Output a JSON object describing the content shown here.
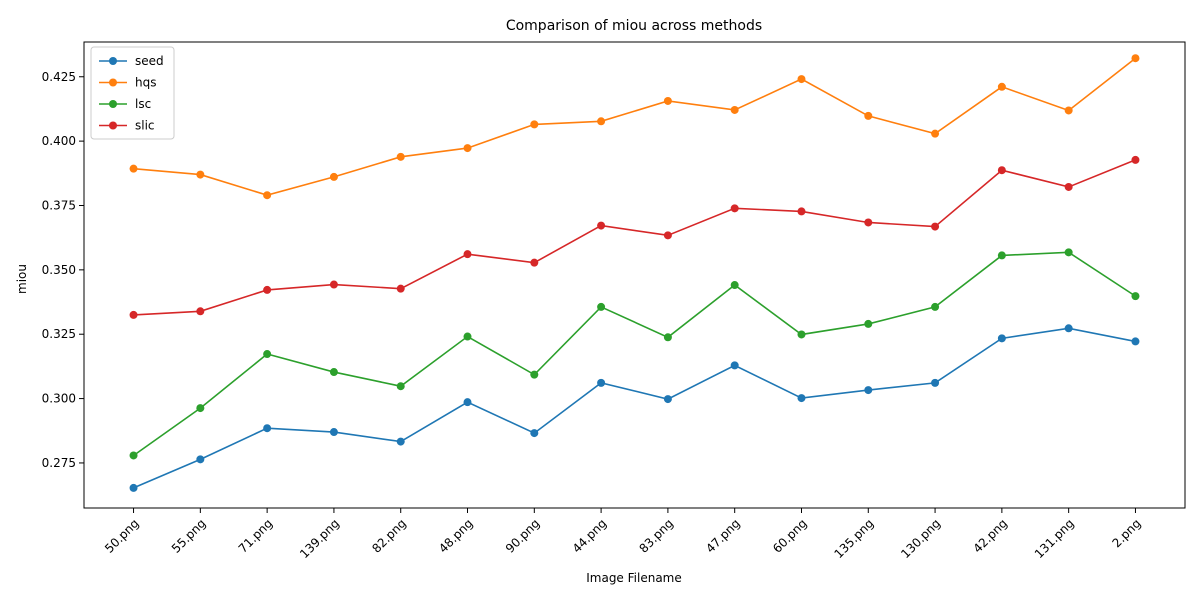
{
  "chart_data": {
    "type": "line",
    "title": "Comparison of miou across methods",
    "xlabel": "Image Filename",
    "ylabel": "miou",
    "categories": [
      "50.png",
      "55.png",
      "71.png",
      "139.png",
      "82.png",
      "48.png",
      "90.png",
      "44.png",
      "83.png",
      "47.png",
      "60.png",
      "135.png",
      "130.png",
      "42.png",
      "131.png",
      "2.png"
    ],
    "ylim": [
      0.2575,
      0.4385
    ],
    "yticks": [
      0.275,
      0.3,
      0.325,
      0.35,
      0.375,
      0.4,
      0.425
    ],
    "ytick_labels": [
      "0.275",
      "0.300",
      "0.325",
      "0.350",
      "0.375",
      "0.400",
      "0.425"
    ],
    "grid": false,
    "legend_position": "top-left",
    "series": [
      {
        "name": "seed",
        "color": "#1f77b4",
        "values": [
          0.2653,
          0.2764,
          0.2885,
          0.287,
          0.2833,
          0.2986,
          0.2866,
          0.3061,
          0.2998,
          0.3129,
          0.3002,
          0.3033,
          0.3061,
          0.3234,
          0.3273,
          0.3222
        ]
      },
      {
        "name": "hqs",
        "color": "#ff7f0e",
        "values": [
          0.3893,
          0.387,
          0.379,
          0.3861,
          0.3939,
          0.3973,
          0.4065,
          0.4077,
          0.4156,
          0.4121,
          0.4241,
          0.4098,
          0.4029,
          0.4211,
          0.4119,
          0.4322
        ]
      },
      {
        "name": "lsc",
        "color": "#2ca02c",
        "values": [
          0.2779,
          0.2963,
          0.3173,
          0.3103,
          0.3048,
          0.3241,
          0.3093,
          0.3356,
          0.3238,
          0.3441,
          0.3249,
          0.329,
          0.3356,
          0.3556,
          0.3568,
          0.3398
        ]
      },
      {
        "name": "slic",
        "color": "#d62728",
        "values": [
          0.3325,
          0.3339,
          0.3422,
          0.3443,
          0.3427,
          0.3561,
          0.3528,
          0.3672,
          0.3634,
          0.3739,
          0.3727,
          0.3684,
          0.3668,
          0.3887,
          0.3822,
          0.3927
        ]
      }
    ]
  }
}
